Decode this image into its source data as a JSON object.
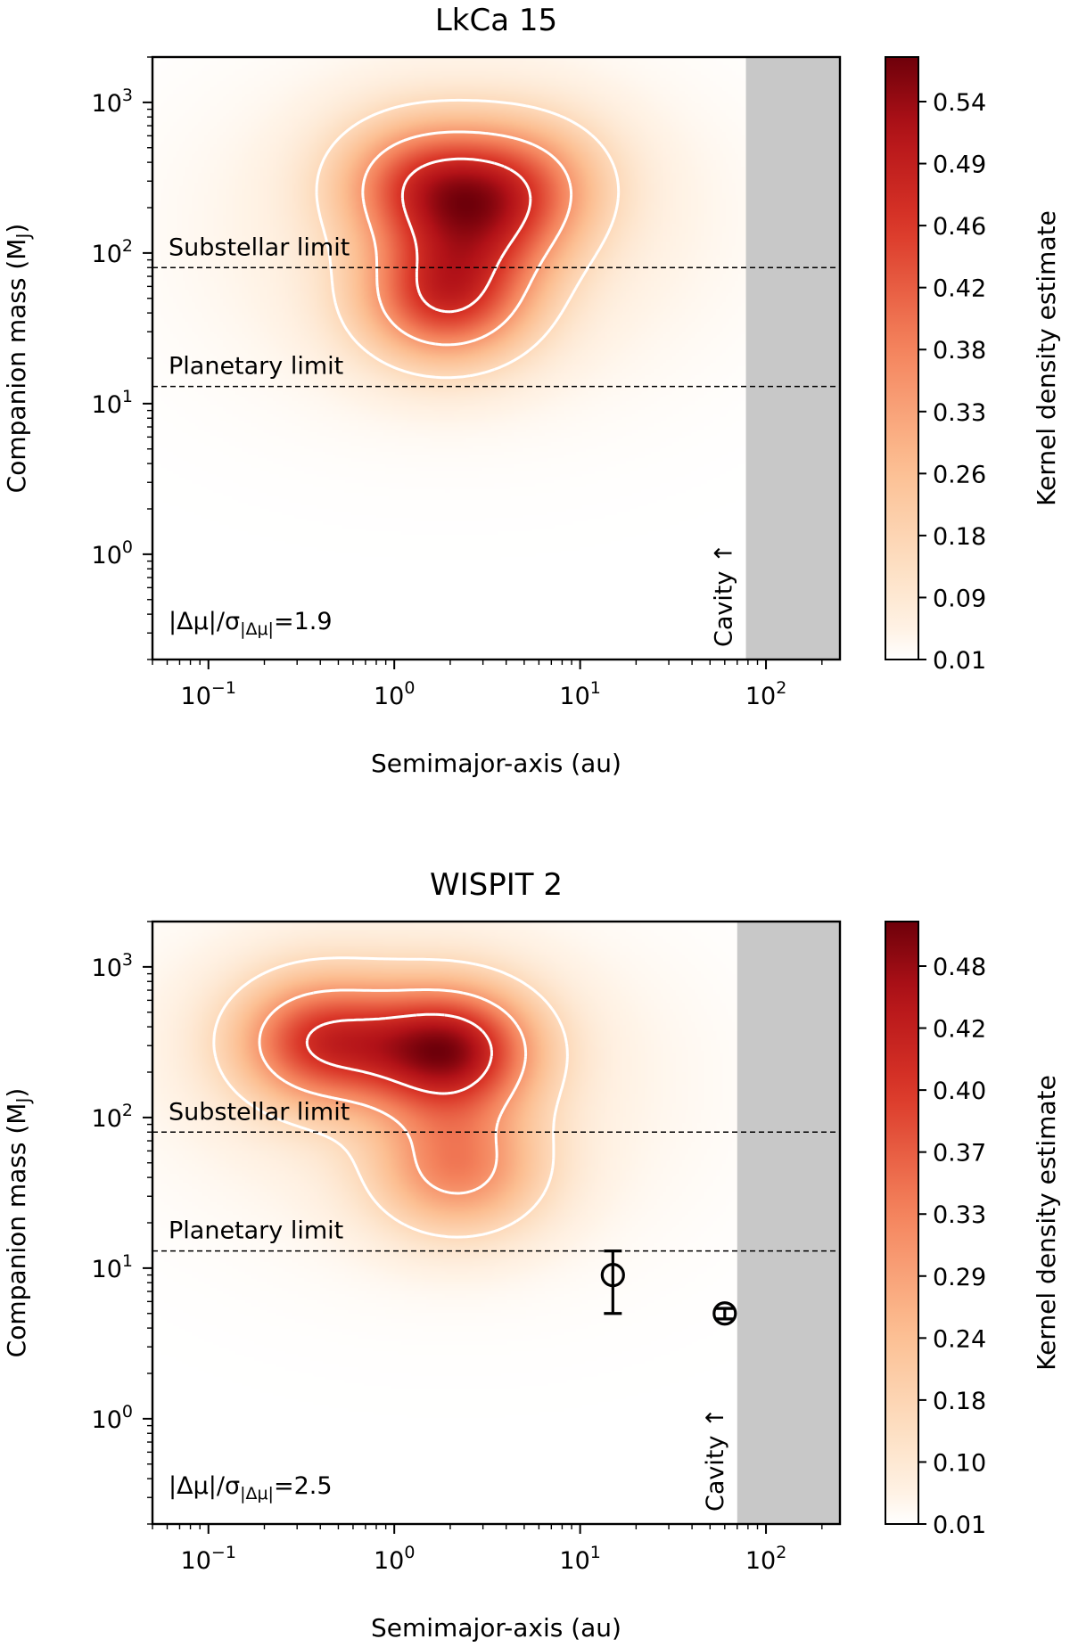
{
  "chart_data": [
    {
      "type": "heatmap",
      "title": "LkCa 15",
      "xlabel": "Semimajor-axis (au)",
      "ylabel": "Companion mass (M",
      "ylabel_sub": "J",
      "ylabel_close": ")",
      "xscale": "log",
      "yscale": "log",
      "xlim": [
        0.05,
        250
      ],
      "ylim": [
        0.2,
        2000
      ],
      "x_ticks": [
        {
          "value": 0.1,
          "base": "10",
          "exp": "−1"
        },
        {
          "value": 1,
          "base": "10",
          "exp": "0"
        },
        {
          "value": 10,
          "base": "10",
          "exp": "1"
        },
        {
          "value": 100,
          "base": "10",
          "exp": "2"
        }
      ],
      "y_ticks": [
        {
          "value": 1,
          "base": "10",
          "exp": "0"
        },
        {
          "value": 10,
          "base": "10",
          "exp": "1"
        },
        {
          "value": 100,
          "base": "10",
          "exp": "2"
        },
        {
          "value": 1000,
          "base": "10",
          "exp": "3"
        }
      ],
      "hlines": [
        {
          "y": 80,
          "label": "Substellar limit"
        },
        {
          "y": 13,
          "label": "Planetary limit"
        }
      ],
      "cavity": {
        "x_start": 78,
        "label": "Cavity ↑"
      },
      "stat_annotation": {
        "pre": "|Δμ|/σ",
        "sub": "|Δμ|",
        "post": "=1.9"
      },
      "density_peaks": [
        {
          "x": 1.9,
          "y": 50,
          "amp": 1.0
        },
        {
          "x": 1.4,
          "y": 290,
          "amp": 0.82
        },
        {
          "x": 4.9,
          "y": 310,
          "amp": 0.55
        },
        {
          "x": 3.3,
          "y": 155,
          "amp": 0.5
        }
      ],
      "points": [],
      "colorbar": {
        "label": "Kernel density estimate",
        "ticks": [
          "0.01",
          "0.09",
          "0.18",
          "0.26",
          "0.33",
          "0.38",
          "0.42",
          "0.46",
          "0.49",
          "0.54"
        ]
      }
    },
    {
      "type": "heatmap",
      "title": "WISPIT 2",
      "xlabel": "Semimajor-axis (au)",
      "ylabel": "Companion mass (M",
      "ylabel_sub": "J",
      "ylabel_close": ")",
      "xscale": "log",
      "yscale": "log",
      "xlim": [
        0.05,
        250
      ],
      "ylim": [
        0.2,
        2000
      ],
      "x_ticks": [
        {
          "value": 0.1,
          "base": "10",
          "exp": "−1"
        },
        {
          "value": 1,
          "base": "10",
          "exp": "0"
        },
        {
          "value": 10,
          "base": "10",
          "exp": "1"
        },
        {
          "value": 100,
          "base": "10",
          "exp": "2"
        }
      ],
      "y_ticks": [
        {
          "value": 1,
          "base": "10",
          "exp": "0"
        },
        {
          "value": 10,
          "base": "10",
          "exp": "1"
        },
        {
          "value": 100,
          "base": "10",
          "exp": "2"
        },
        {
          "value": 1000,
          "base": "10",
          "exp": "3"
        }
      ],
      "hlines": [
        {
          "y": 80,
          "label": "Substellar limit"
        },
        {
          "y": 13,
          "label": "Planetary limit"
        }
      ],
      "cavity": {
        "x_start": 70,
        "label": "Cavity ↑"
      },
      "stat_annotation": {
        "pre": "|Δμ|/σ",
        "sub": "|Δμ|",
        "post": "=2.5"
      },
      "density_peaks": [
        {
          "x": 2.0,
          "y": 280,
          "amp": 1.0
        },
        {
          "x": 0.4,
          "y": 320,
          "amp": 0.78
        },
        {
          "x": 2.2,
          "y": 45,
          "amp": 0.55
        }
      ],
      "points": [
        {
          "x": 15,
          "y": 9,
          "yerr_low": 5,
          "yerr_high": 13
        },
        {
          "x": 60,
          "y": 5,
          "yerr_low": 4.6,
          "yerr_high": 5.4
        }
      ],
      "colorbar": {
        "label": "Kernel density estimate",
        "ticks": [
          "0.01",
          "0.10",
          "0.18",
          "0.24",
          "0.29",
          "0.33",
          "0.37",
          "0.40",
          "0.42",
          "0.48"
        ]
      }
    }
  ]
}
